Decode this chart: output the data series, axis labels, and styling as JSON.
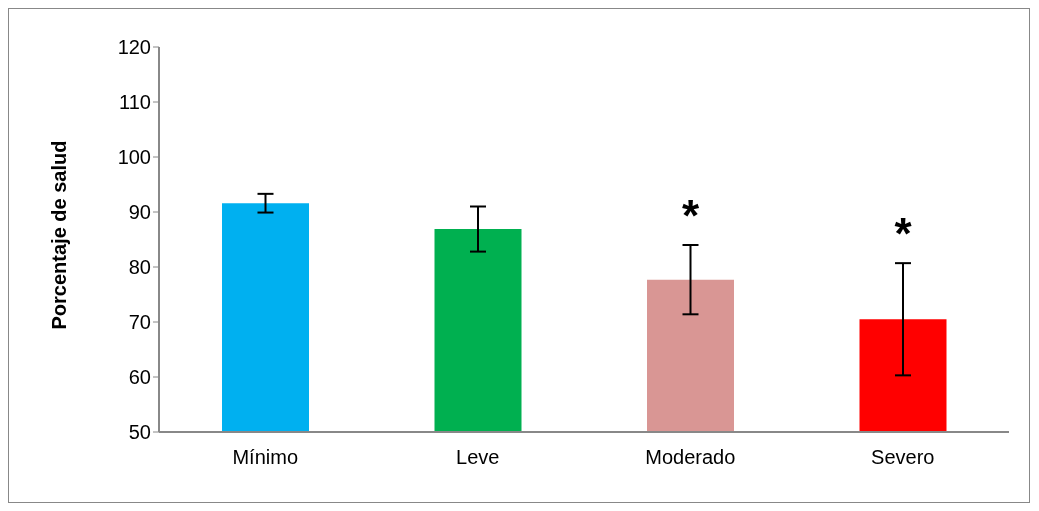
{
  "chart_data": {
    "type": "bar",
    "ylabel": "Porcentaje de salud",
    "categories": [
      "Mínimo",
      "Leve",
      "Moderado",
      "Severo"
    ],
    "values": [
      91.6,
      86.9,
      77.7,
      70.5
    ],
    "errors": [
      1.7,
      4.1,
      6.3,
      10.2
    ],
    "colors": [
      "#00b0f0",
      "#00b050",
      "#d99694",
      "#ff0000"
    ],
    "value_labels": [
      null,
      null,
      "*",
      "*"
    ],
    "ylim": [
      50,
      120
    ],
    "yticks": [
      50,
      60,
      70,
      80,
      90,
      100,
      110,
      120
    ],
    "grid": false
  }
}
